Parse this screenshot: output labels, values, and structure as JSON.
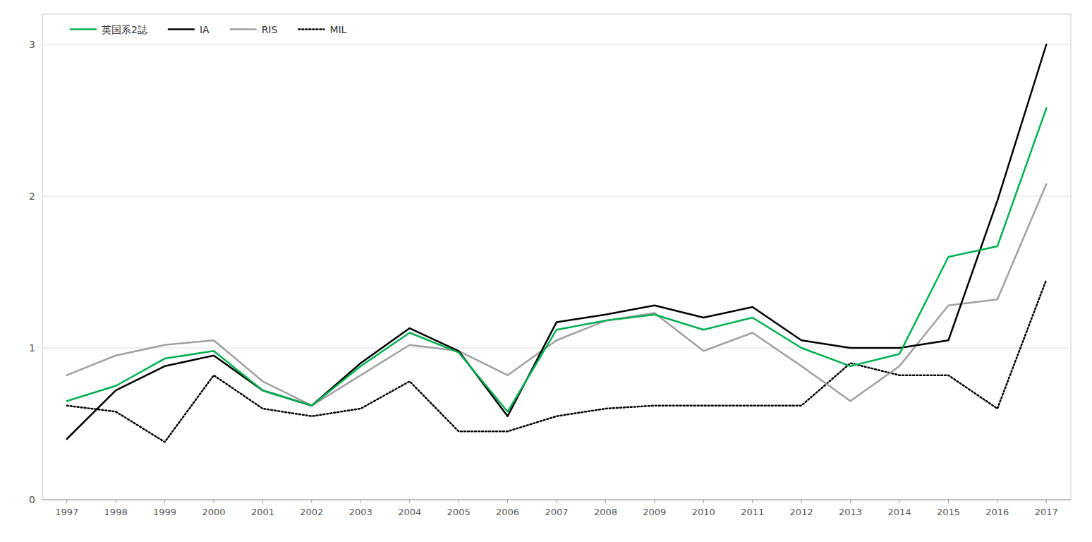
{
  "chart_data": {
    "type": "line",
    "x": [
      1997,
      1998,
      1999,
      2000,
      2001,
      2002,
      2003,
      2004,
      2005,
      2006,
      2007,
      2008,
      2009,
      2010,
      2011,
      2012,
      2013,
      2014,
      2015,
      2016,
      2017
    ],
    "series": [
      {
        "name": "英国系2誌",
        "color": "#00b050",
        "line_style": "solid",
        "values": [
          0.65,
          0.75,
          0.93,
          0.98,
          0.72,
          0.62,
          0.88,
          1.1,
          0.97,
          0.58,
          1.12,
          1.18,
          1.22,
          1.12,
          1.2,
          1.0,
          0.88,
          0.96,
          1.6,
          1.67,
          2.58
        ]
      },
      {
        "name": "IA",
        "color": "#000000",
        "line_style": "solid",
        "values": [
          0.4,
          0.72,
          0.88,
          0.95,
          0.72,
          0.62,
          0.9,
          1.13,
          0.98,
          0.55,
          1.17,
          1.22,
          1.28,
          1.2,
          1.27,
          1.05,
          1.0,
          1.0,
          1.05,
          1.97,
          3.0
        ]
      },
      {
        "name": "RIS",
        "color": "#a0a0a0",
        "line_style": "solid",
        "values": [
          0.82,
          0.95,
          1.02,
          1.05,
          0.78,
          0.62,
          0.82,
          1.02,
          0.98,
          0.82,
          1.05,
          1.18,
          1.23,
          0.98,
          1.1,
          0.88,
          0.65,
          0.88,
          1.28,
          1.32,
          2.08
        ]
      },
      {
        "name": "MIL",
        "color": "#000000",
        "line_style": "dotted",
        "values": [
          0.62,
          0.58,
          0.38,
          0.82,
          0.6,
          0.55,
          0.6,
          0.78,
          0.45,
          0.45,
          0.55,
          0.6,
          0.62,
          0.62,
          0.62,
          0.62,
          0.9,
          0.82,
          0.82,
          0.6,
          1.45
        ]
      }
    ],
    "xlim": [
      1996.5,
      2017.5
    ],
    "xticks": [
      1997,
      1998,
      1999,
      2000,
      2001,
      2002,
      2003,
      2004,
      2005,
      2006,
      2007,
      2008,
      2009,
      2010,
      2011,
      2012,
      2013,
      2014,
      2015,
      2016,
      2017
    ],
    "ylim": [
      0,
      3.2
    ],
    "yticks": [
      0,
      1,
      2,
      3
    ],
    "grid": true,
    "legend": "upper left"
  }
}
